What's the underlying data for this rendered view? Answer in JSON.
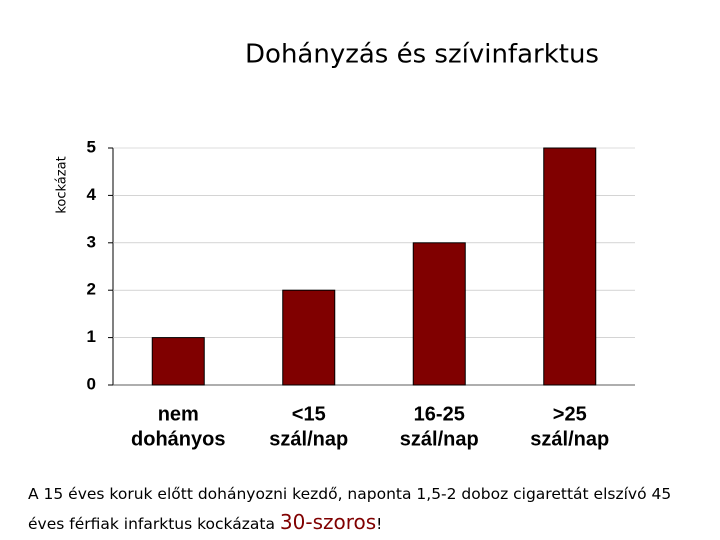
{
  "chart_data": {
    "type": "bar",
    "title": "Dohányzás és szívinfarktus",
    "y_label": "kockázat",
    "categories": [
      [
        "nem",
        "dohányos"
      ],
      [
        "<15",
        "szál/nap"
      ],
      [
        "16-25",
        "szál/nap"
      ],
      [
        ">25",
        "szál/nap"
      ]
    ],
    "values": [
      1,
      2,
      3,
      5
    ],
    "color": "#800000",
    "ylim": [
      0,
      5
    ],
    "yticks": [
      0,
      1,
      2,
      3,
      4,
      5
    ],
    "grid": true
  },
  "note": [
    "A 15 éves koruk előtt dohányozni kezdő, naponta 1,5-2 doboz cigarettát elszívó 45 éves férfiak infarktus kockázata",
    "30-szoros",
    "!"
  ]
}
